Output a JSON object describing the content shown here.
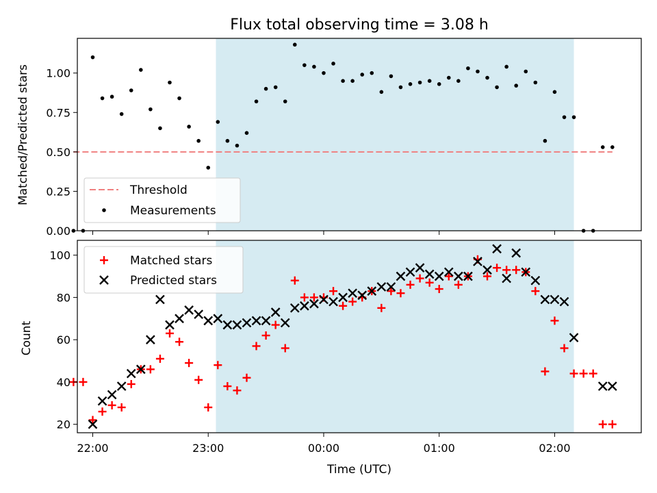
{
  "chart_data": [
    {
      "type": "scatter",
      "title": "Flux total observing time = 3.08 h",
      "ylabel": "Matched/Predicted stars",
      "xlim": [
        "21:52",
        "02:45"
      ],
      "ylim": [
        0,
        1.22
      ],
      "yticks": [
        "0.00",
        "0.25",
        "0.50",
        "0.75",
        "1.00"
      ],
      "grid": false,
      "legend_position": "lower-left",
      "shaded_interval": [
        "23:04",
        "02:10"
      ],
      "threshold": {
        "name": "Threshold",
        "value": 0.5,
        "x_range": [
          "21:50",
          "02:30"
        ],
        "color": "#f08080"
      },
      "series": [
        {
          "name": "Measurements",
          "color": "#000000",
          "marker": "dot",
          "x": [
            "21:50",
            "21:55",
            "22:00",
            "22:05",
            "22:10",
            "22:15",
            "22:20",
            "22:25",
            "22:30",
            "22:35",
            "22:40",
            "22:45",
            "22:50",
            "22:55",
            "23:00",
            "23:05",
            "23:10",
            "23:15",
            "23:20",
            "23:25",
            "23:30",
            "23:35",
            "23:40",
            "23:45",
            "23:50",
            "23:55",
            "00:00",
            "00:05",
            "00:10",
            "00:15",
            "00:20",
            "00:25",
            "00:30",
            "00:35",
            "00:40",
            "00:45",
            "00:50",
            "00:55",
            "01:00",
            "01:05",
            "01:10",
            "01:15",
            "01:20",
            "01:25",
            "01:30",
            "01:35",
            "01:40",
            "01:45",
            "01:50",
            "01:55",
            "02:00",
            "02:05",
            "02:10",
            "02:15",
            "02:20",
            "02:25",
            "02:30"
          ],
          "y": [
            0,
            0,
            1.1,
            0.84,
            0.85,
            0.74,
            0.89,
            1.02,
            0.77,
            0.65,
            0.94,
            0.84,
            0.66,
            0.57,
            0.4,
            0.69,
            0.57,
            0.54,
            0.62,
            0.82,
            0.9,
            0.91,
            0.82,
            1.18,
            1.05,
            1.04,
            1.0,
            1.06,
            0.95,
            0.95,
            0.99,
            1.0,
            0.88,
            0.98,
            0.91,
            0.93,
            0.94,
            0.95,
            0.93,
            0.97,
            0.95,
            1.03,
            1.01,
            0.97,
            0.91,
            1.04,
            0.92,
            1.01,
            0.94,
            0.57,
            0.88,
            0.72,
            0.72,
            0,
            0,
            0.53,
            0.53
          ]
        }
      ]
    },
    {
      "type": "scatter",
      "xlabel": "Time (UTC)",
      "ylabel": "Count",
      "xlim": [
        "21:52",
        "02:45"
      ],
      "ylim": [
        16,
        107
      ],
      "yticks": [
        "20",
        "40",
        "60",
        "80",
        "100"
      ],
      "xticks": [
        "22:00",
        "23:00",
        "00:00",
        "01:00",
        "02:00"
      ],
      "grid": false,
      "legend_position": "upper-left",
      "shaded_interval": [
        "23:04",
        "02:10"
      ],
      "series": [
        {
          "name": "Matched stars",
          "color": "#ff0000",
          "marker": "plus",
          "x": [
            "21:50",
            "21:55",
            "22:00",
            "22:05",
            "22:10",
            "22:15",
            "22:20",
            "22:25",
            "22:30",
            "22:35",
            "22:40",
            "22:45",
            "22:50",
            "22:55",
            "23:00",
            "23:05",
            "23:10",
            "23:15",
            "23:20",
            "23:25",
            "23:30",
            "23:35",
            "23:40",
            "23:45",
            "23:50",
            "23:55",
            "00:00",
            "00:05",
            "00:10",
            "00:15",
            "00:20",
            "00:25",
            "00:30",
            "00:35",
            "00:40",
            "00:45",
            "00:50",
            "00:55",
            "01:00",
            "01:05",
            "01:10",
            "01:15",
            "01:20",
            "01:25",
            "01:30",
            "01:35",
            "01:40",
            "01:45",
            "01:50",
            "01:55",
            "02:00",
            "02:05",
            "02:10",
            "02:15",
            "02:20",
            "02:25",
            "02:30"
          ],
          "y": [
            40,
            40,
            22,
            26,
            29,
            28,
            39,
            46,
            46,
            51,
            63,
            59,
            49,
            41,
            28,
            48,
            38,
            36,
            42,
            57,
            62,
            67,
            56,
            88,
            80,
            80,
            80,
            83,
            76,
            78,
            80,
            83,
            75,
            83,
            82,
            86,
            89,
            87,
            84,
            90,
            86,
            90,
            98,
            90,
            94,
            93,
            93,
            92,
            83,
            45,
            69,
            56,
            44,
            44,
            44,
            20,
            20
          ]
        },
        {
          "name": "Predicted stars",
          "color": "#000000",
          "marker": "x",
          "x": [
            "22:00",
            "22:05",
            "22:10",
            "22:15",
            "22:20",
            "22:25",
            "22:30",
            "22:35",
            "22:40",
            "22:45",
            "22:50",
            "22:55",
            "23:00",
            "23:05",
            "23:10",
            "23:15",
            "23:20",
            "23:25",
            "23:30",
            "23:35",
            "23:40",
            "23:45",
            "23:50",
            "23:55",
            "00:00",
            "00:05",
            "00:10",
            "00:15",
            "00:20",
            "00:25",
            "00:30",
            "00:35",
            "00:40",
            "00:45",
            "00:50",
            "00:55",
            "01:00",
            "01:05",
            "01:10",
            "01:15",
            "01:20",
            "01:25",
            "01:30",
            "01:35",
            "01:40",
            "01:45",
            "01:50",
            "01:55",
            "02:00",
            "02:05",
            "02:10",
            "02:15",
            "02:20",
            "02:25",
            "02:30"
          ],
          "y": [
            20,
            31,
            34,
            38,
            44,
            46,
            60,
            79,
            67,
            70,
            74,
            72,
            69,
            70,
            67,
            67,
            68,
            69,
            69,
            73,
            68,
            75,
            76,
            77,
            79,
            78,
            80,
            82,
            81,
            83,
            85,
            85,
            90,
            92,
            94,
            91,
            90,
            92,
            90,
            90,
            97,
            93,
            103,
            89,
            101,
            92,
            88,
            79,
            79,
            78,
            61,
            null,
            null,
            38,
            38
          ]
        }
      ]
    }
  ]
}
